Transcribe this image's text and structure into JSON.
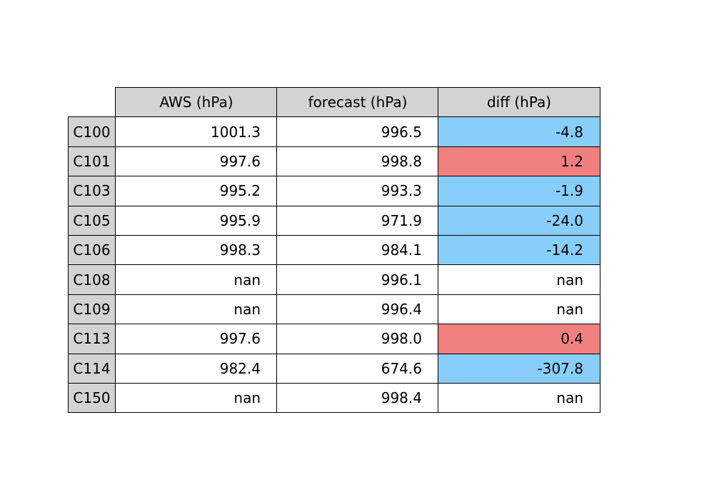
{
  "chart_data": {
    "type": "table",
    "columns": [
      "AWS (hPa)",
      "forecast (hPa)",
      "diff (hPa)"
    ],
    "rows": [
      {
        "label": "C100",
        "values": [
          "1001.3",
          "996.5",
          "-4.8"
        ]
      },
      {
        "label": "C101",
        "values": [
          "997.6",
          "998.8",
          "1.2"
        ]
      },
      {
        "label": "C103",
        "values": [
          "995.2",
          "993.3",
          "-1.9"
        ]
      },
      {
        "label": "C105",
        "values": [
          "995.9",
          "971.9",
          "-24.0"
        ]
      },
      {
        "label": "C106",
        "values": [
          "998.3",
          "984.1",
          "-14.2"
        ]
      },
      {
        "label": "C108",
        "values": [
          "nan",
          "996.1",
          "nan"
        ]
      },
      {
        "label": "C109",
        "values": [
          "nan",
          "996.4",
          "nan"
        ]
      },
      {
        "label": "C113",
        "values": [
          "997.6",
          "998.0",
          "0.4"
        ]
      },
      {
        "label": "C114",
        "values": [
          "982.4",
          "674.6",
          "-307.8"
        ]
      },
      {
        "label": "C150",
        "values": [
          "nan",
          "998.4",
          "nan"
        ]
      }
    ],
    "colors": {
      "header": "#d3d3d3",
      "negative": "#87cefa",
      "positive": "#f08080",
      "missing": "#ffffff",
      "cell": "#ffffff",
      "border": "#000000"
    }
  }
}
